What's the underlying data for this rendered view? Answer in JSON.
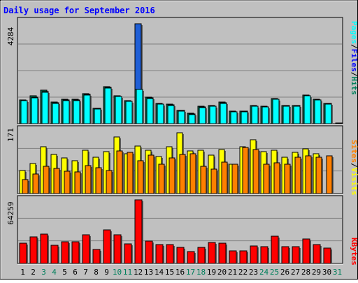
{
  "chart_data": [
    {
      "type": "bar",
      "title": "Daily usage for September 2016",
      "categories": [
        "1",
        "2",
        "3",
        "4",
        "5",
        "6",
        "7",
        "8",
        "9",
        "10",
        "11",
        "12",
        "13",
        "14",
        "15",
        "16",
        "17",
        "18",
        "19",
        "20",
        "21",
        "22",
        "23",
        "24",
        "25",
        "26",
        "27",
        "28",
        "29",
        "30",
        "31"
      ],
      "weekend_categories": [
        "3",
        "4",
        "10",
        "11",
        "17",
        "18",
        "24",
        "25",
        "31"
      ],
      "ylabel": "4284",
      "ylim": [
        0,
        4284
      ],
      "legend": [
        "Pages",
        "Files",
        "Hits"
      ],
      "series": [
        {
          "name": "Hits",
          "values": [
            1000,
            1160,
            1400,
            900,
            1020,
            1020,
            1260,
            660,
            1560,
            1180,
            970,
            4200,
            1120,
            860,
            820,
            570,
            430,
            720,
            760,
            900,
            530,
            540,
            760,
            730,
            1060,
            770,
            770,
            1210,
            1040,
            860,
            0
          ]
        },
        {
          "name": "Files",
          "values": [
            980,
            1120,
            1340,
            880,
            1000,
            1000,
            1230,
            640,
            1520,
            1150,
            950,
            1450,
            1080,
            830,
            790,
            550,
            410,
            700,
            740,
            880,
            510,
            520,
            740,
            710,
            1040,
            750,
            750,
            1180,
            1010,
            840,
            0
          ]
        },
        {
          "name": "Pages",
          "values": [
            0,
            0,
            0,
            0,
            0,
            0,
            0,
            0,
            0,
            0,
            0,
            0,
            0,
            0,
            0,
            0,
            0,
            0,
            0,
            0,
            0,
            0,
            0,
            0,
            0,
            0,
            0,
            0,
            0,
            0,
            0
          ]
        }
      ]
    },
    {
      "type": "bar",
      "categories": [
        "1",
        "2",
        "3",
        "4",
        "5",
        "6",
        "7",
        "8",
        "9",
        "10",
        "11",
        "12",
        "13",
        "14",
        "15",
        "16",
        "17",
        "18",
        "19",
        "20",
        "21",
        "22",
        "23",
        "24",
        "25",
        "26",
        "27",
        "28",
        "29",
        "30",
        "31"
      ],
      "ylabel": "171",
      "ylim": [
        0,
        171
      ],
      "legend": [
        "Sites",
        "Visits"
      ],
      "series": [
        {
          "name": "Visits",
          "values": [
            62,
            80,
            126,
            105,
            95,
            88,
            116,
            98,
            112,
            152,
            108,
            128,
            117,
            100,
            125,
            163,
            114,
            117,
            104,
            118,
            78,
            126,
            144,
            112,
            116,
            98,
            110,
            121,
            108,
            0,
            0
          ]
        },
        {
          "name": "Sites",
          "values": [
            38,
            52,
            73,
            67,
            60,
            58,
            75,
            70,
            62,
            115,
            110,
            88,
            103,
            78,
            95,
            106,
            107,
            73,
            65,
            85,
            78,
            124,
            118,
            78,
            82,
            79,
            97,
            102,
            98,
            102,
            0
          ]
        }
      ]
    },
    {
      "type": "bar",
      "categories": [
        "1",
        "2",
        "3",
        "4",
        "5",
        "6",
        "7",
        "8",
        "9",
        "10",
        "11",
        "12",
        "13",
        "14",
        "15",
        "16",
        "17",
        "18",
        "19",
        "20",
        "21",
        "22",
        "23",
        "24",
        "25",
        "26",
        "27",
        "28",
        "29",
        "30",
        "31"
      ],
      "ylabel": "64259",
      "ylim": [
        0,
        64259
      ],
      "legend": [
        "KBytes"
      ],
      "series": [
        {
          "name": "KBytes",
          "values": [
            20400,
            26600,
            29400,
            18500,
            22100,
            22100,
            29100,
            13800,
            34200,
            29200,
            19900,
            64000,
            22400,
            18900,
            19200,
            16300,
            11900,
            16300,
            21000,
            20400,
            12700,
            12700,
            17800,
            16900,
            27600,
            16700,
            17200,
            24700,
            19300,
            15500,
            0
          ]
        }
      ]
    }
  ],
  "colors": {
    "background": "#c0c0c0",
    "frame": "#ffffff",
    "title": "#0000ff",
    "hits": "#00805c",
    "files": "#0000ff",
    "pages": "#00ffff",
    "visits": "#ffff00",
    "sites": "#ff8000",
    "kbytes": "#ff0000",
    "weekday_label": "#000000",
    "weekend_label": "#00805c"
  }
}
